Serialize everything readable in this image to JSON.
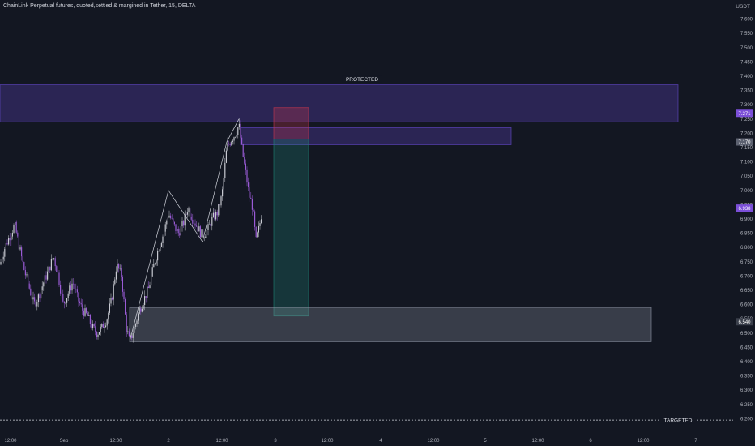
{
  "header": {
    "title": "ChainLink Perpetual futures, quoted,settled & margined in Tether, 15, DELTA",
    "unit": "USDT"
  },
  "colors": {
    "background": "#131722",
    "candle_up": "#c7c9d1",
    "candle_down": "#9a5bd6",
    "axis_text": "#b2b5be",
    "protected_zone": "#6a4bd6",
    "short_zone": "#d0384f",
    "target_zone": "#1f8a7a",
    "demand_zone": "#9aa0b1",
    "price_label": "#7b4fd8"
  },
  "chart_data": {
    "type": "candlestick",
    "symbol": "ChainLink Perpetual futures, quoted,settled & margined in Tether",
    "interval": "15",
    "exchange": "DELTA",
    "ylim": [
      6.15,
      7.65
    ],
    "y_ticks": [
      "7.600",
      "7.550",
      "7.500",
      "7.450",
      "7.400",
      "7.350",
      "7.300",
      "7.250",
      "7.200",
      "7.150",
      "7.100",
      "7.050",
      "7.000",
      "6.950",
      "6.900",
      "6.850",
      "6.800",
      "6.750",
      "6.700",
      "6.650",
      "6.600",
      "6.550",
      "6.500",
      "6.450",
      "6.400",
      "6.350",
      "6.300",
      "6.250",
      "6.200"
    ],
    "x_ticks": [
      "12:00",
      "Sep",
      "12:00",
      "2",
      "12:00",
      "3",
      "12:00",
      "4",
      "12:00",
      "5",
      "12:00",
      "6",
      "12:00",
      "7"
    ],
    "last_price": 6.938,
    "price_path": [
      [
        0,
        6.74
      ],
      [
        6,
        6.8
      ],
      [
        12,
        6.84
      ],
      [
        18,
        6.88
      ],
      [
        24,
        6.8
      ],
      [
        30,
        6.72
      ],
      [
        36,
        6.66
      ],
      [
        42,
        6.6
      ],
      [
        48,
        6.63
      ],
      [
        54,
        6.68
      ],
      [
        60,
        6.72
      ],
      [
        66,
        6.77
      ],
      [
        72,
        6.7
      ],
      [
        78,
        6.6
      ],
      [
        84,
        6.64
      ],
      [
        90,
        6.68
      ],
      [
        96,
        6.62
      ],
      [
        102,
        6.58
      ],
      [
        108,
        6.56
      ],
      [
        114,
        6.52
      ],
      [
        120,
        6.5
      ],
      [
        126,
        6.52
      ],
      [
        132,
        6.55
      ],
      [
        138,
        6.62
      ],
      [
        144,
        6.74
      ],
      [
        150,
        6.7
      ],
      [
        156,
        6.52
      ],
      [
        160,
        6.47
      ],
      [
        166,
        6.52
      ],
      [
        172,
        6.58
      ],
      [
        178,
        6.62
      ],
      [
        184,
        6.66
      ],
      [
        190,
        6.74
      ],
      [
        196,
        6.8
      ],
      [
        202,
        6.85
      ],
      [
        208,
        6.92
      ],
      [
        214,
        6.88
      ],
      [
        220,
        6.85
      ],
      [
        226,
        6.88
      ],
      [
        232,
        6.94
      ],
      [
        238,
        6.9
      ],
      [
        244,
        6.87
      ],
      [
        250,
        6.84
      ],
      [
        256,
        6.86
      ],
      [
        262,
        6.9
      ],
      [
        268,
        6.92
      ],
      [
        274,
        6.98
      ],
      [
        280,
        7.15
      ],
      [
        286,
        7.18
      ],
      [
        291,
        7.2
      ],
      [
        295,
        7.23
      ],
      [
        299,
        7.14
      ],
      [
        304,
        7.05
      ],
      [
        308,
        6.98
      ],
      [
        312,
        6.94
      ],
      [
        316,
        6.82
      ],
      [
        320,
        6.87
      ],
      [
        323,
        6.92
      ]
    ],
    "swing_lines": [
      [
        [
          160,
          6.47
        ],
        [
          208,
          7.0
        ],
        [
          250,
          6.82
        ],
        [
          280,
          7.17
        ],
        [
          295,
          7.25
        ]
      ]
    ],
    "zones": [
      {
        "name": "protected",
        "x_from": 0,
        "x_to": 837,
        "y_from": 7.24,
        "y_to": 7.37,
        "color": "#6a4bd6"
      },
      {
        "name": "entry",
        "x_from": 297,
        "x_to": 631,
        "y_from": 7.16,
        "y_to": 7.22,
        "color": "#6a4bd6"
      },
      {
        "name": "short-stop",
        "x_from": 338,
        "x_to": 381,
        "y_from": 7.18,
        "y_to": 7.29,
        "color": "#d0384f"
      },
      {
        "name": "short-target",
        "x_from": 338,
        "x_to": 381,
        "y_from": 6.56,
        "y_to": 7.18,
        "color": "#1f8a7a"
      },
      {
        "name": "demand",
        "x_from": 160,
        "x_to": 804,
        "y_from": 6.47,
        "y_to": 6.59,
        "color": "#9aa0b1"
      }
    ],
    "levels": [
      {
        "name": "protected-line",
        "label": "PROTECTED",
        "value": 7.39
      },
      {
        "name": "targeted-line",
        "label": "TARGETED",
        "value": 6.195
      }
    ],
    "price_labels": [
      {
        "name": "label-top",
        "value": "7.271",
        "y": 7.27,
        "bg": "#7b4fd8"
      },
      {
        "name": "label-entry",
        "value": "7.170",
        "y": 7.17,
        "bg": "#5c6170"
      },
      {
        "name": "label-last",
        "value": "6.938",
        "y": 6.938,
        "bg": "#7b4fd8"
      },
      {
        "name": "label-demand",
        "value": "6.540",
        "y": 6.54,
        "bg": "#3a3f4b"
      }
    ]
  }
}
